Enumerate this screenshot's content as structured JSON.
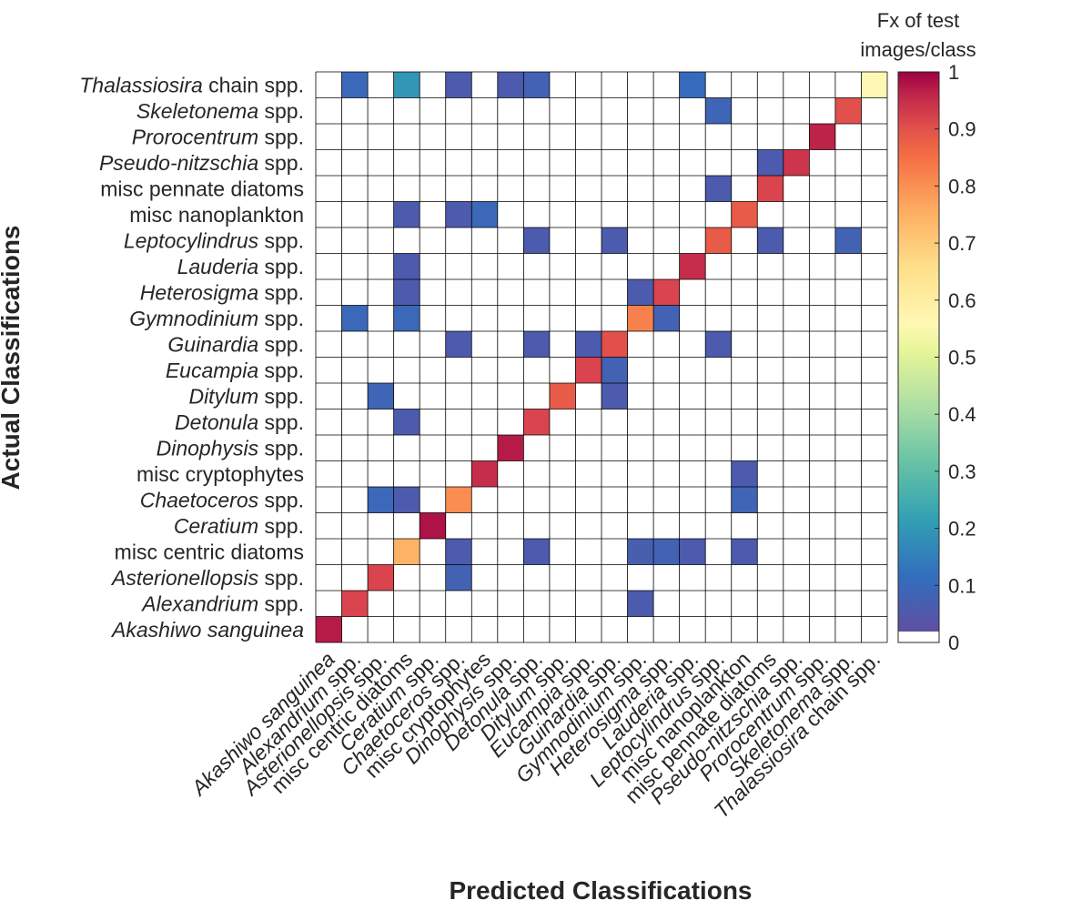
{
  "chart_data": {
    "type": "heatmap",
    "title": "",
    "xlabel": "Predicted Classifications",
    "ylabel": "Actual Classifications",
    "colorbar": {
      "title_lines": [
        "Fx of test",
        "images/class"
      ],
      "ticks": [
        "0",
        "0.1",
        "0.2",
        "0.3",
        "0.4",
        "0.5",
        "0.6",
        "0.7",
        "0.8",
        "0.9",
        "1"
      ],
      "range": [
        0,
        1
      ],
      "colormap": "spectral (white below ~0.02)"
    },
    "grid": true,
    "classes": [
      {
        "name": "Akashiwo sanguinea",
        "italic": "Akashiwo sanguinea",
        "rest": ""
      },
      {
        "name": "Alexandrium spp.",
        "italic": "Alexandrium",
        "rest": " spp."
      },
      {
        "name": "Asterionellopsis spp.",
        "italic": "Asterionellopsis",
        "rest": " spp."
      },
      {
        "name": "misc centric diatoms",
        "italic": "",
        "rest": "misc centric diatoms"
      },
      {
        "name": "Ceratium spp.",
        "italic": "Ceratium",
        "rest": " spp."
      },
      {
        "name": "Chaetoceros spp.",
        "italic": "Chaetoceros",
        "rest": " spp."
      },
      {
        "name": "misc cryptophytes",
        "italic": "",
        "rest": "misc cryptophytes"
      },
      {
        "name": "Dinophysis spp.",
        "italic": "Dinophysis",
        "rest": " spp."
      },
      {
        "name": "Detonula spp.",
        "italic": "Detonula",
        "rest": " spp."
      },
      {
        "name": "Ditylum spp.",
        "italic": "Ditylum",
        "rest": " spp."
      },
      {
        "name": "Eucampia spp.",
        "italic": "Eucampia",
        "rest": " spp."
      },
      {
        "name": "Guinardia spp.",
        "italic": "Guinardia",
        "rest": " spp."
      },
      {
        "name": "Gymnodinium spp.",
        "italic": "Gymnodinium",
        "rest": " spp."
      },
      {
        "name": "Heterosigma spp.",
        "italic": "Heterosigma",
        "rest": " spp."
      },
      {
        "name": "Lauderia spp.",
        "italic": "Lauderia",
        "rest": " spp."
      },
      {
        "name": "Leptocylindrus spp.",
        "italic": "Leptocylindrus",
        "rest": " spp."
      },
      {
        "name": "misc nanoplankton",
        "italic": "",
        "rest": "misc nanoplankton"
      },
      {
        "name": "misc pennate diatoms",
        "italic": "",
        "rest": "misc pennate diatoms"
      },
      {
        "name": "Pseudo-nitzschia spp.",
        "italic": "Pseudo-nitzschia",
        "rest": " spp."
      },
      {
        "name": "Prorocentrum spp.",
        "italic": "Prorocentrum",
        "rest": " spp."
      },
      {
        "name": "Skeletonema spp.",
        "italic": "Skeletonema",
        "rest": " spp."
      },
      {
        "name": "Thalassiosira chain spp.",
        "italic": "Thalassiosira",
        "rest": " chain spp."
      }
    ],
    "cells": [
      {
        "actual": 0,
        "predicted": 0,
        "value": 0.97
      },
      {
        "actual": 1,
        "predicted": 1,
        "value": 0.92
      },
      {
        "actual": 1,
        "predicted": 12,
        "value": 0.04
      },
      {
        "actual": 2,
        "predicted": 2,
        "value": 0.92
      },
      {
        "actual": 2,
        "predicted": 5,
        "value": 0.06
      },
      {
        "actual": 3,
        "predicted": 3,
        "value": 0.74
      },
      {
        "actual": 3,
        "predicted": 5,
        "value": 0.04
      },
      {
        "actual": 3,
        "predicted": 8,
        "value": 0.04
      },
      {
        "actual": 3,
        "predicted": 12,
        "value": 0.05
      },
      {
        "actual": 3,
        "predicted": 13,
        "value": 0.06
      },
      {
        "actual": 3,
        "predicted": 14,
        "value": 0.04
      },
      {
        "actual": 3,
        "predicted": 16,
        "value": 0.04
      },
      {
        "actual": 4,
        "predicted": 4,
        "value": 0.98
      },
      {
        "actual": 5,
        "predicted": 2,
        "value": 0.08
      },
      {
        "actual": 5,
        "predicted": 3,
        "value": 0.04
      },
      {
        "actual": 5,
        "predicted": 5,
        "value": 0.8
      },
      {
        "actual": 5,
        "predicted": 16,
        "value": 0.07
      },
      {
        "actual": 6,
        "predicted": 6,
        "value": 0.95
      },
      {
        "actual": 6,
        "predicted": 16,
        "value": 0.04
      },
      {
        "actual": 7,
        "predicted": 7,
        "value": 0.97
      },
      {
        "actual": 8,
        "predicted": 3,
        "value": 0.04
      },
      {
        "actual": 8,
        "predicted": 8,
        "value": 0.92
      },
      {
        "actual": 9,
        "predicted": 2,
        "value": 0.07
      },
      {
        "actual": 9,
        "predicted": 9,
        "value": 0.88
      },
      {
        "actual": 9,
        "predicted": 11,
        "value": 0.04
      },
      {
        "actual": 10,
        "predicted": 10,
        "value": 0.92
      },
      {
        "actual": 10,
        "predicted": 11,
        "value": 0.06
      },
      {
        "actual": 11,
        "predicted": 5,
        "value": 0.04
      },
      {
        "actual": 11,
        "predicted": 8,
        "value": 0.04
      },
      {
        "actual": 11,
        "predicted": 10,
        "value": 0.04
      },
      {
        "actual": 11,
        "predicted": 11,
        "value": 0.9
      },
      {
        "actual": 11,
        "predicted": 15,
        "value": 0.04
      },
      {
        "actual": 12,
        "predicted": 1,
        "value": 0.08
      },
      {
        "actual": 12,
        "predicted": 3,
        "value": 0.08
      },
      {
        "actual": 12,
        "predicted": 12,
        "value": 0.82
      },
      {
        "actual": 12,
        "predicted": 13,
        "value": 0.06
      },
      {
        "actual": 13,
        "predicted": 3,
        "value": 0.04
      },
      {
        "actual": 13,
        "predicted": 12,
        "value": 0.04
      },
      {
        "actual": 13,
        "predicted": 13,
        "value": 0.92
      },
      {
        "actual": 14,
        "predicted": 3,
        "value": 0.04
      },
      {
        "actual": 14,
        "predicted": 14,
        "value": 0.95
      },
      {
        "actual": 15,
        "predicted": 8,
        "value": 0.04
      },
      {
        "actual": 15,
        "predicted": 11,
        "value": 0.04
      },
      {
        "actual": 15,
        "predicted": 15,
        "value": 0.88
      },
      {
        "actual": 15,
        "predicted": 17,
        "value": 0.04
      },
      {
        "actual": 15,
        "predicted": 20,
        "value": 0.06
      },
      {
        "actual": 16,
        "predicted": 3,
        "value": 0.04
      },
      {
        "actual": 16,
        "predicted": 5,
        "value": 0.04
      },
      {
        "actual": 16,
        "predicted": 6,
        "value": 0.08
      },
      {
        "actual": 16,
        "predicted": 16,
        "value": 0.88
      },
      {
        "actual": 17,
        "predicted": 15,
        "value": 0.04
      },
      {
        "actual": 17,
        "predicted": 17,
        "value": 0.92
      },
      {
        "actual": 18,
        "predicted": 17,
        "value": 0.04
      },
      {
        "actual": 18,
        "predicted": 18,
        "value": 0.94
      },
      {
        "actual": 19,
        "predicted": 19,
        "value": 0.96
      },
      {
        "actual": 20,
        "predicted": 15,
        "value": 0.07
      },
      {
        "actual": 20,
        "predicted": 20,
        "value": 0.9
      },
      {
        "actual": 21,
        "predicted": 1,
        "value": 0.08
      },
      {
        "actual": 21,
        "predicted": 3,
        "value": 0.18
      },
      {
        "actual": 21,
        "predicted": 5,
        "value": 0.04
      },
      {
        "actual": 21,
        "predicted": 7,
        "value": 0.04
      },
      {
        "actual": 21,
        "predicted": 8,
        "value": 0.06
      },
      {
        "actual": 21,
        "predicted": 14,
        "value": 0.09
      },
      {
        "actual": 21,
        "predicted": 21,
        "value": 0.55
      }
    ]
  }
}
